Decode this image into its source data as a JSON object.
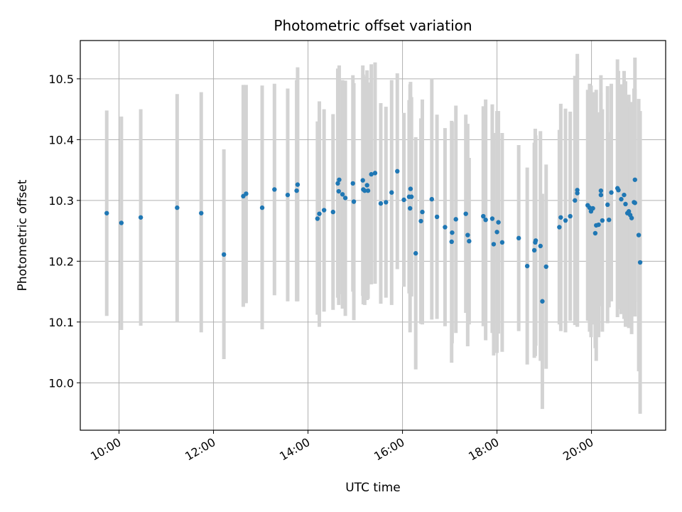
{
  "chart_data": {
    "type": "scatter",
    "title": "Photometric offset variation",
    "xlabel": "UTC time",
    "ylabel": "Photometric offset",
    "x_unit": "hours (UTC)",
    "xlim": [
      9.18,
      21.57
    ],
    "ylim": [
      9.922,
      10.563
    ],
    "x_ticks": [
      {
        "value": 10,
        "label": "10:00"
      },
      {
        "value": 12,
        "label": "12:00"
      },
      {
        "value": 14,
        "label": "14:00"
      },
      {
        "value": 16,
        "label": "16:00"
      },
      {
        "value": 18,
        "label": "18:00"
      },
      {
        "value": 20,
        "label": "20:00"
      }
    ],
    "y_ticks": [
      {
        "value": 10.0,
        "label": "10.0"
      },
      {
        "value": 10.1,
        "label": "10.1"
      },
      {
        "value": 10.2,
        "label": "10.2"
      },
      {
        "value": 10.3,
        "label": "10.3"
      },
      {
        "value": 10.4,
        "label": "10.4"
      },
      {
        "value": 10.5,
        "label": "10.5"
      }
    ],
    "grid": true,
    "colors": {
      "points": "#1f77b4",
      "errorbars": "#d3d3d3",
      "grid": "#b0b0b0"
    },
    "series": [
      {
        "points": [
          [
            9.74,
            10.279,
            10.11,
            10.448
          ],
          [
            10.05,
            10.263,
            10.087,
            10.438
          ],
          [
            10.46,
            10.272,
            10.094,
            10.45
          ],
          [
            11.23,
            10.288,
            10.101,
            10.475
          ],
          [
            11.74,
            10.279,
            10.083,
            10.478
          ],
          [
            12.22,
            10.211,
            10.039,
            10.384
          ],
          [
            12.63,
            10.307,
            10.125,
            10.49
          ],
          [
            12.69,
            10.311,
            10.131,
            10.49
          ],
          [
            13.03,
            10.288,
            10.088,
            10.489
          ],
          [
            13.29,
            10.318,
            10.144,
            10.492
          ],
          [
            13.57,
            10.309,
            10.134,
            10.484
          ],
          [
            13.76,
            10.316,
            10.134,
            10.498
          ],
          [
            13.78,
            10.326,
            10.134,
            10.519
          ],
          [
            14.2,
            10.27,
            10.112,
            10.43
          ],
          [
            14.24,
            10.278,
            10.092,
            10.463
          ],
          [
            14.34,
            10.284,
            10.117,
            10.45
          ],
          [
            14.53,
            10.281,
            10.12,
            10.442
          ],
          [
            14.63,
            10.328,
            10.14,
            10.517
          ],
          [
            14.66,
            10.334,
            10.146,
            10.522
          ],
          [
            14.65,
            10.315,
            10.128,
            10.502
          ],
          [
            14.73,
            10.31,
            10.122,
            10.498
          ],
          [
            14.79,
            10.304,
            10.11,
            10.497
          ],
          [
            14.95,
            10.328,
            10.15,
            10.506
          ],
          [
            14.97,
            10.298,
            10.103,
            10.493
          ],
          [
            15.16,
            10.333,
            10.143,
            10.522
          ],
          [
            15.17,
            10.318,
            10.129,
            10.507
          ],
          [
            15.2,
            10.316,
            10.128,
            10.504
          ],
          [
            15.25,
            10.325,
            10.136,
            10.514
          ],
          [
            15.27,
            10.316,
            10.138,
            10.494
          ],
          [
            15.34,
            10.343,
            10.162,
            10.524
          ],
          [
            15.42,
            10.345,
            10.163,
            10.527
          ],
          [
            15.54,
            10.295,
            10.13,
            10.46
          ],
          [
            15.65,
            10.297,
            10.14,
            10.454
          ],
          [
            15.77,
            10.313,
            10.128,
            10.498
          ],
          [
            15.89,
            10.348,
            10.187,
            10.509
          ],
          [
            16.03,
            10.301,
            10.158,
            10.444
          ],
          [
            16.14,
            10.306,
            10.147,
            10.465
          ],
          [
            16.17,
            10.319,
            10.143,
            10.495
          ],
          [
            16.19,
            10.306,
            10.142,
            10.47
          ],
          [
            16.16,
            10.287,
            10.083,
            10.491
          ],
          [
            16.28,
            10.213,
            10.022,
            10.404
          ],
          [
            16.39,
            10.266,
            10.097,
            10.435
          ],
          [
            16.42,
            10.281,
            10.096,
            10.466
          ],
          [
            16.62,
            10.302,
            10.104,
            10.5
          ],
          [
            16.73,
            10.273,
            10.105,
            10.441
          ],
          [
            16.9,
            10.256,
            10.093,
            10.419
          ],
          [
            17.04,
            10.232,
            10.033,
            10.431
          ],
          [
            17.05,
            10.247,
            10.065,
            10.429
          ],
          [
            17.13,
            10.269,
            10.082,
            10.456
          ],
          [
            17.34,
            10.278,
            10.115,
            10.441
          ],
          [
            17.38,
            10.243,
            10.06,
            10.426
          ],
          [
            17.41,
            10.233,
            10.096,
            10.37
          ],
          [
            17.71,
            10.274,
            10.093,
            10.455
          ],
          [
            17.76,
            10.268,
            10.07,
            10.466
          ],
          [
            17.9,
            10.27,
            10.082,
            10.458
          ],
          [
            17.93,
            10.228,
            10.045,
            10.411
          ],
          [
            18.0,
            10.248,
            10.049,
            10.447
          ],
          [
            18.03,
            10.264,
            10.081,
            10.447
          ],
          [
            18.11,
            10.231,
            10.051,
            10.411
          ],
          [
            18.46,
            10.238,
            10.085,
            10.391
          ],
          [
            18.64,
            10.192,
            10.03,
            10.354
          ],
          [
            18.79,
            10.218,
            10.041,
            10.395
          ],
          [
            18.81,
            10.231,
            10.044,
            10.418
          ],
          [
            18.82,
            10.234,
            10.061,
            10.407
          ],
          [
            18.92,
            10.225,
            10.036,
            10.414
          ],
          [
            18.96,
            10.134,
            9.957,
            10.311
          ],
          [
            19.04,
            10.191,
            10.023,
            10.359
          ],
          [
            19.32,
            10.256,
            10.096,
            10.416
          ],
          [
            19.35,
            10.272,
            10.085,
            10.459
          ],
          [
            19.45,
            10.267,
            10.083,
            10.451
          ],
          [
            19.55,
            10.274,
            10.102,
            10.446
          ],
          [
            19.65,
            10.3,
            10.095,
            10.505
          ],
          [
            19.7,
            10.317,
            10.093,
            10.541
          ],
          [
            19.7,
            10.312,
            10.092,
            10.532
          ],
          [
            19.92,
            10.292,
            10.102,
            10.482
          ],
          [
            19.96,
            10.288,
            10.084,
            10.492
          ],
          [
            19.99,
            10.282,
            10.075,
            10.489
          ],
          [
            20.03,
            10.287,
            10.096,
            10.478
          ],
          [
            20.08,
            10.246,
            10.057,
            10.435
          ],
          [
            20.1,
            10.259,
            10.036,
            10.482
          ],
          [
            20.15,
            10.26,
            10.075,
            10.445
          ],
          [
            20.2,
            10.316,
            10.126,
            10.506
          ],
          [
            20.2,
            10.309,
            10.141,
            10.477
          ],
          [
            20.23,
            10.267,
            10.084,
            10.45
          ],
          [
            20.37,
            10.268,
            10.124,
            10.412
          ],
          [
            20.34,
            10.293,
            10.098,
            10.488
          ],
          [
            20.42,
            10.313,
            10.134,
            10.492
          ],
          [
            20.57,
            10.317,
            10.121,
            10.513
          ],
          [
            20.55,
            10.32,
            10.108,
            10.532
          ],
          [
            20.63,
            10.302,
            10.113,
            10.491
          ],
          [
            20.69,
            10.309,
            10.105,
            10.513
          ],
          [
            20.72,
            10.294,
            10.092,
            10.496
          ],
          [
            20.76,
            10.279,
            10.094,
            10.464
          ],
          [
            20.79,
            10.282,
            10.09,
            10.474
          ],
          [
            20.82,
            10.276,
            10.097,
            10.455
          ],
          [
            20.85,
            10.271,
            10.08,
            10.462
          ],
          [
            20.9,
            10.297,
            10.11,
            10.484
          ],
          [
            20.92,
            10.296,
            10.109,
            10.483
          ],
          [
            20.92,
            10.334,
            10.133,
            10.535
          ],
          [
            21.0,
            10.243,
            10.019,
            10.467
          ],
          [
            21.03,
            10.198,
            9.949,
            10.447
          ]
        ]
      }
    ]
  }
}
